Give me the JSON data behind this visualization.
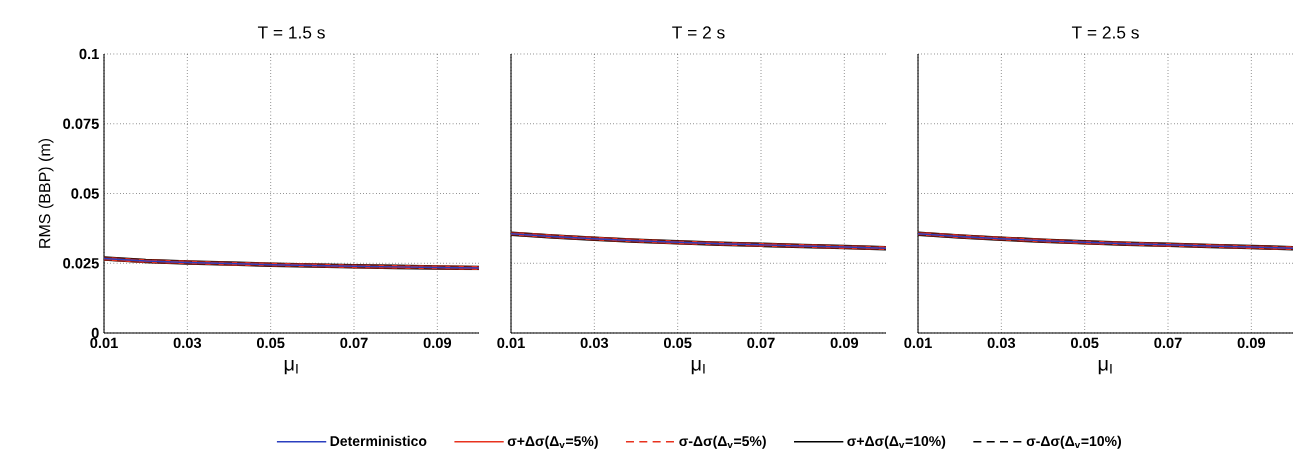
{
  "chart_data": [
    {
      "type": "line",
      "title": "T = 1.5 s",
      "xlabel": "μ$_{I}$",
      "ylabel": "RMS (BBP) (m)",
      "x": [
        0.01,
        0.02,
        0.03,
        0.04,
        0.05,
        0.06,
        0.07,
        0.08,
        0.09,
        0.1
      ],
      "xlim": [
        0.01,
        0.1
      ],
      "ylim": [
        0,
        0.1
      ],
      "xticks": [
        0.01,
        0.03,
        0.05,
        0.07,
        0.09
      ],
      "yticks": [
        0,
        0.025,
        0.05,
        0.075,
        0.1
      ],
      "grid": true,
      "legend": "bottom",
      "series": [
        {
          "name": "Deterministico",
          "color": "#2b3fbf",
          "line_style": "solid",
          "values": [
            0.0267,
            0.0258,
            0.0253,
            0.0249,
            0.0245,
            0.0242,
            0.0239,
            0.0237,
            0.0235,
            0.0233
          ]
        },
        {
          "name": "σ+Δσ(Δ$_{v}$=5%)",
          "color": "#e8321e",
          "line_style": "solid",
          "values": [
            0.0267,
            0.0258,
            0.0253,
            0.0249,
            0.0245,
            0.0242,
            0.0239,
            0.0237,
            0.0235,
            0.0233
          ]
        },
        {
          "name": "σ-Δσ(Δ$_{v}$=5%)",
          "color": "#e8321e",
          "line_style": "dashed",
          "values": [
            0.0267,
            0.0258,
            0.0253,
            0.0249,
            0.0245,
            0.0242,
            0.0239,
            0.0237,
            0.0235,
            0.0233
          ]
        },
        {
          "name": "σ+Δσ(Δ$_{v}$=10%)",
          "color": "#000000",
          "line_style": "solid",
          "values": [
            0.0267,
            0.0258,
            0.0253,
            0.0249,
            0.0245,
            0.0242,
            0.0239,
            0.0237,
            0.0235,
            0.0233
          ]
        },
        {
          "name": "σ-Δσ(Δ$_{v}$=10%)",
          "color": "#000000",
          "line_style": "dashed",
          "values": [
            0.0267,
            0.0258,
            0.0253,
            0.0249,
            0.0245,
            0.0242,
            0.0239,
            0.0237,
            0.0235,
            0.0233
          ]
        }
      ]
    },
    {
      "type": "line",
      "title": "T = 2 s",
      "xlabel": "μ$_{I}$",
      "x": [
        0.01,
        0.02,
        0.03,
        0.04,
        0.05,
        0.06,
        0.07,
        0.08,
        0.09,
        0.1
      ],
      "xlim": [
        0.01,
        0.1
      ],
      "ylim": [
        0,
        0.1
      ],
      "xticks": [
        0.01,
        0.03,
        0.05,
        0.07,
        0.09
      ],
      "yticks": [
        0,
        0.025,
        0.05,
        0.075,
        0.1
      ],
      "grid": true,
      "tick_labels": "x",
      "series": [
        {
          "color": "#2b3fbf",
          "line_style": "solid",
          "values": [
            0.0356,
            0.0346,
            0.0338,
            0.0331,
            0.0325,
            0.032,
            0.0316,
            0.0312,
            0.0308,
            0.0304
          ]
        },
        {
          "color": "#e8321e",
          "line_style": "solid",
          "values": [
            0.0356,
            0.0346,
            0.0338,
            0.0331,
            0.0325,
            0.032,
            0.0316,
            0.0312,
            0.0308,
            0.0304
          ]
        },
        {
          "color": "#e8321e",
          "line_style": "dashed",
          "values": [
            0.0356,
            0.0346,
            0.0338,
            0.0331,
            0.0325,
            0.032,
            0.0316,
            0.0312,
            0.0308,
            0.0304
          ]
        },
        {
          "color": "#000000",
          "line_style": "solid",
          "values": [
            0.0356,
            0.0346,
            0.0338,
            0.0331,
            0.0325,
            0.032,
            0.0316,
            0.0312,
            0.0308,
            0.0304
          ]
        },
        {
          "color": "#000000",
          "line_style": "dashed",
          "values": [
            0.0356,
            0.0346,
            0.0338,
            0.0331,
            0.0325,
            0.032,
            0.0316,
            0.0312,
            0.0308,
            0.0304
          ]
        }
      ]
    },
    {
      "type": "line",
      "title": "T = 2.5 s",
      "xlabel": "μ$_{I}$",
      "x": [
        0.01,
        0.02,
        0.03,
        0.04,
        0.05,
        0.06,
        0.07,
        0.08,
        0.09,
        0.1
      ],
      "xlim": [
        0.01,
        0.1
      ],
      "ylim": [
        0,
        0.1
      ],
      "xticks": [
        0.01,
        0.03,
        0.05,
        0.07,
        0.09
      ],
      "yticks": [
        0,
        0.025,
        0.05,
        0.075,
        0.1
      ],
      "grid": true,
      "tick_labels": "x",
      "series": [
        {
          "color": "#2b3fbf",
          "line_style": "solid",
          "values": [
            0.0356,
            0.0346,
            0.0338,
            0.0331,
            0.0325,
            0.032,
            0.0316,
            0.0312,
            0.0308,
            0.0304
          ]
        },
        {
          "color": "#e8321e",
          "line_style": "solid",
          "values": [
            0.0356,
            0.0346,
            0.0338,
            0.0331,
            0.0325,
            0.032,
            0.0316,
            0.0312,
            0.0308,
            0.0304
          ]
        },
        {
          "color": "#e8321e",
          "line_style": "dashed",
          "values": [
            0.0356,
            0.0346,
            0.0338,
            0.0331,
            0.0325,
            0.032,
            0.0316,
            0.0312,
            0.0308,
            0.0304
          ]
        },
        {
          "color": "#000000",
          "line_style": "solid",
          "values": [
            0.0356,
            0.0346,
            0.0338,
            0.0331,
            0.0325,
            0.032,
            0.0316,
            0.0312,
            0.0308,
            0.0304
          ]
        },
        {
          "color": "#000000",
          "line_style": "dashed",
          "values": [
            0.0356,
            0.0346,
            0.0338,
            0.0331,
            0.0325,
            0.032,
            0.0316,
            0.0312,
            0.0308,
            0.0304
          ]
        }
      ]
    }
  ]
}
